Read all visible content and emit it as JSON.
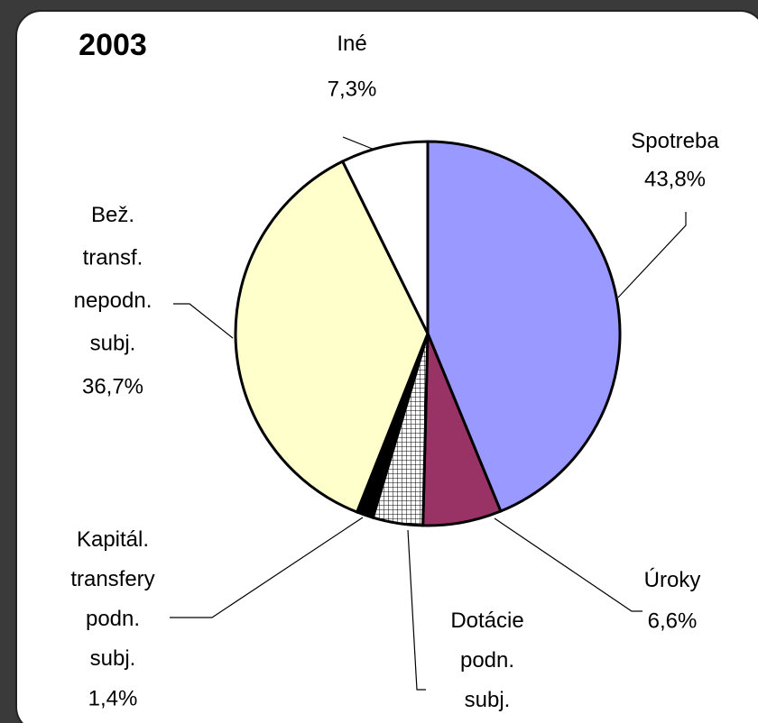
{
  "chart_data": {
    "type": "pie",
    "title": "2003",
    "categories": [
      "Spotreba",
      "Úroky",
      "Dotácie podn. subj.",
      "Kapitál. transfery podn. subj.",
      "Bež. transf. nepodn. subj.",
      "Iné"
    ],
    "values": [
      43.8,
      6.6,
      4.2,
      1.4,
      36.7,
      7.3
    ],
    "value_labels": [
      "43,8%",
      "6,6%",
      null,
      "1,4%",
      "36,7%",
      "7,3%"
    ],
    "colors": [
      "#9999ff",
      "#993366",
      "#000000",
      "#000000",
      "#ffffcc",
      "#ffffff"
    ],
    "pattern_slices": [
      2
    ]
  }
}
